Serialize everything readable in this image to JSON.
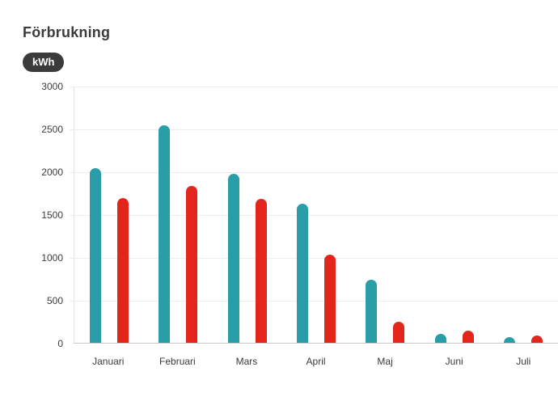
{
  "header": {
    "title": "Förbrukning",
    "unit_badge": "kWh"
  },
  "colors": {
    "series_teal": "#299EA8",
    "series_red": "#E2261C",
    "badge_bg": "#3B3B3B",
    "text": "#3C3C3C",
    "gridline": "#ECECEC",
    "axis_line": "#C9C9C9"
  },
  "chart_data": {
    "type": "bar",
    "title": "Förbrukning",
    "unit": "kWh",
    "categories": [
      "Januari",
      "Februari",
      "Mars",
      "April",
      "Maj",
      "Juni",
      "Juli"
    ],
    "series": [
      {
        "name": "teal-series",
        "color": "#299EA8",
        "values": [
          2040,
          2540,
          1970,
          1620,
          740,
          100,
          70
        ]
      },
      {
        "name": "red-series",
        "color": "#E2261C",
        "values": [
          1690,
          1830,
          1680,
          1030,
          250,
          140,
          85
        ]
      }
    ],
    "ylim": [
      0,
      3000
    ],
    "ytick_interval": 500,
    "yticks": [
      3000,
      2500,
      2000,
      1500,
      1000,
      500,
      0
    ],
    "grid": "horizontal",
    "legend": "none"
  }
}
